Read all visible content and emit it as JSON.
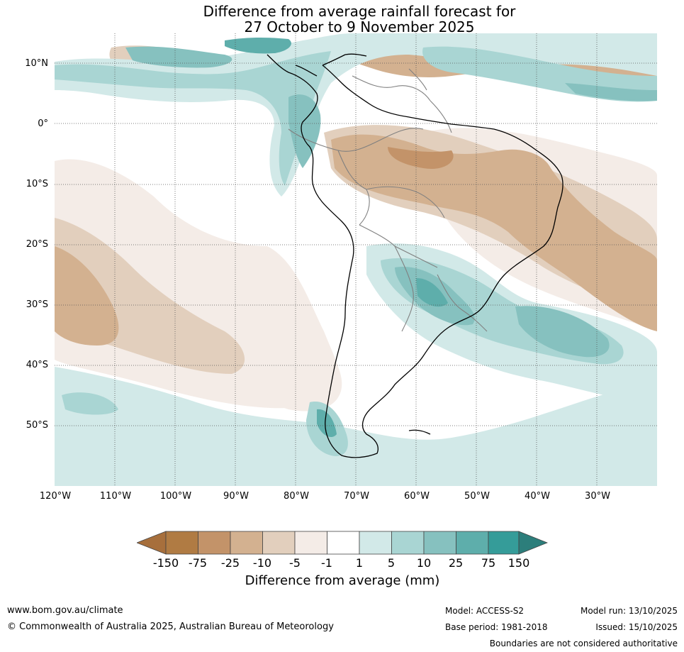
{
  "title": {
    "line1": "Difference from average rainfall forecast for",
    "line2": "27 October to 9 November 2025"
  },
  "map": {
    "latitude_labels": [
      "10°N",
      "0°",
      "10°S",
      "20°S",
      "30°S",
      "40°S",
      "50°S"
    ],
    "longitude_labels": [
      "120°W",
      "110°W",
      "100°W",
      "90°W",
      "80°W",
      "70°W",
      "60°W",
      "50°W",
      "40°W",
      "30°W"
    ],
    "colors": {
      "dry_150": "#a76f3c",
      "dry_75": "#b07b43",
      "dry_25": "#c39369",
      "dry_10": "#d3b190",
      "dry_5": "#e2cfbd",
      "dry_1": "#f4ece7",
      "neutral": "#ffffff",
      "wet_1": "#d2e9e8",
      "wet_5": "#a9d5d3",
      "wet_10": "#86c1bf",
      "wet_25": "#5eaeab",
      "wet_75": "#359c99",
      "wet_150": "#2c7e7b",
      "coastline": "#000000",
      "borders": "#808080",
      "gridlines": "#555555"
    }
  },
  "colorbar": {
    "tick_labels": [
      "-150",
      "-75",
      "-25",
      "-10",
      "-5",
      "-1",
      "1",
      "5",
      "10",
      "25",
      "75",
      "150"
    ],
    "title": "Difference from average (mm)"
  },
  "footer": {
    "website": "www.bom.gov.au/climate",
    "copyright": "© Commonwealth of Australia 2025, Australian Bureau of Meteorology",
    "model": "Model: ACCESS-S2",
    "base_period": "Base period: 1981-2018",
    "model_run": "Model run: 13/10/2025",
    "issued": "Issued: 15/10/2025",
    "disclaimer": "Boundaries are not considered authoritative"
  }
}
